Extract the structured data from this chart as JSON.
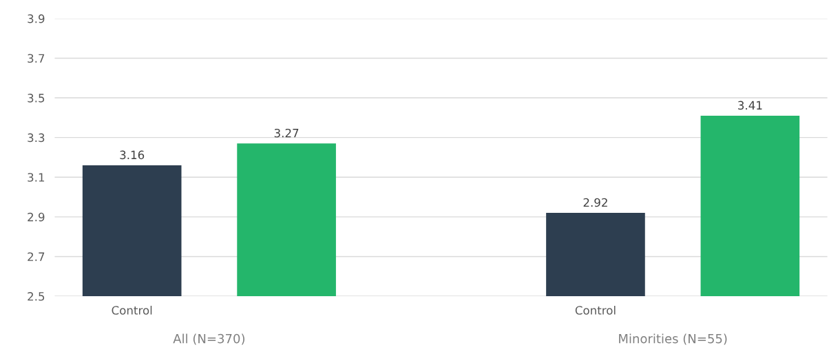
{
  "chart_data": {
    "type": "bar",
    "categories": [
      "Control",
      null,
      null,
      "Control",
      null
    ],
    "values": [
      3.16,
      3.27,
      null,
      2.92,
      3.41
    ],
    "colors": [
      "#2d3e50",
      "#24b66b",
      null,
      "#2d3e50",
      "#24b66b"
    ],
    "ylim": [
      2.5,
      3.9
    ],
    "yticks": [
      2.5,
      2.7,
      2.9,
      3.1,
      3.3,
      3.5,
      3.7,
      3.9
    ],
    "grid": "y",
    "data_labels": true,
    "legend": false,
    "annotations": [
      "All (N=370)",
      "Minorities (N=55)"
    ]
  }
}
